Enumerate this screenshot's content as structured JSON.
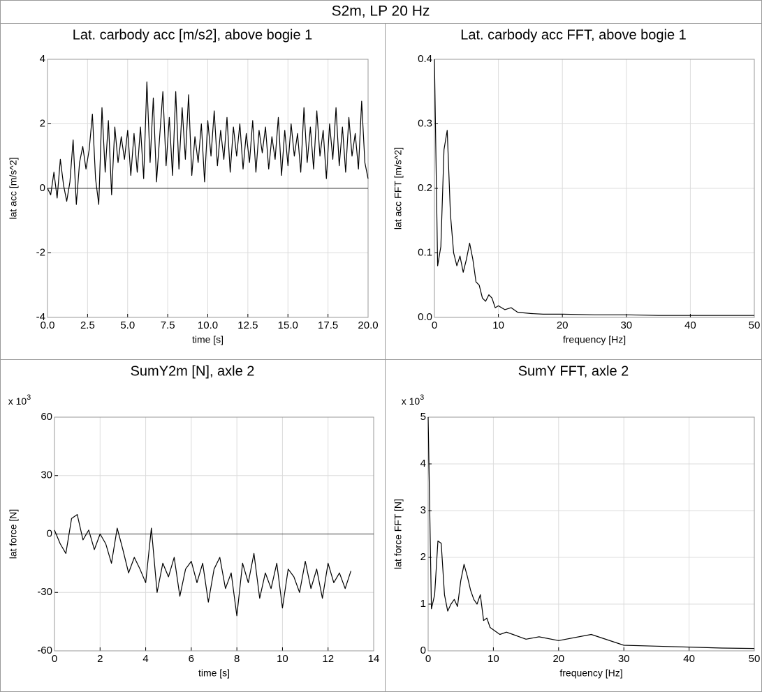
{
  "title": "S2m, LP 20 Hz",
  "chart_data": [
    {
      "type": "line",
      "title": "Lat. carbody acc [m/s2], above bogie 1",
      "xlabel": "time [s]",
      "ylabel": "lat acc [m/s^2]",
      "color": "#000000",
      "grid": true,
      "zero_line": true,
      "x": [
        0,
        0.2,
        0.4,
        0.6,
        0.8,
        1,
        1.2,
        1.4,
        1.6,
        1.8,
        2,
        2.2,
        2.4,
        2.6,
        2.8,
        3,
        3.2,
        3.4,
        3.6,
        3.8,
        4,
        4.2,
        4.4,
        4.6,
        4.8,
        5,
        5.2,
        5.4,
        5.6,
        5.8,
        6,
        6.2,
        6.4,
        6.6,
        6.8,
        7,
        7.2,
        7.4,
        7.6,
        7.8,
        8,
        8.2,
        8.4,
        8.6,
        8.8,
        9,
        9.2,
        9.4,
        9.6,
        9.8,
        10,
        10.2,
        10.4,
        10.6,
        10.8,
        11,
        11.2,
        11.4,
        11.6,
        11.8,
        12,
        12.2,
        12.4,
        12.6,
        12.8,
        13,
        13.2,
        13.4,
        13.6,
        13.8,
        14,
        14.2,
        14.4,
        14.6,
        14.8,
        15,
        15.2,
        15.4,
        15.6,
        15.8,
        16,
        16.2,
        16.4,
        16.6,
        16.8,
        17,
        17.2,
        17.4,
        17.6,
        17.8,
        18,
        18.2,
        18.4,
        18.6,
        18.8,
        19,
        19.2,
        19.4,
        19.6,
        19.8,
        20
      ],
      "values": [
        0.0,
        -0.2,
        0.5,
        -0.3,
        0.9,
        0.1,
        -0.4,
        0.2,
        1.5,
        -0.5,
        0.8,
        1.3,
        0.6,
        1.2,
        2.3,
        0.3,
        -0.5,
        2.5,
        0.5,
        2.1,
        -0.2,
        1.9,
        0.8,
        1.6,
        0.9,
        1.8,
        0.4,
        1.7,
        0.5,
        1.9,
        0.3,
        3.3,
        0.8,
        2.8,
        0.2,
        1.6,
        3.0,
        0.7,
        2.2,
        0.4,
        3.0,
        0.6,
        2.5,
        0.9,
        2.9,
        0.4,
        1.6,
        0.8,
        2.0,
        0.2,
        2.1,
        1.0,
        2.4,
        0.7,
        1.8,
        0.9,
        2.2,
        0.5,
        1.9,
        1.0,
        2.0,
        0.6,
        1.7,
        0.8,
        2.1,
        0.5,
        1.8,
        1.1,
        1.9,
        0.6,
        1.6,
        0.9,
        2.2,
        0.4,
        1.8,
        0.7,
        2.0,
        1.0,
        1.7,
        0.5,
        2.5,
        0.8,
        1.9,
        0.6,
        2.4,
        1.0,
        1.8,
        0.3,
        2.0,
        0.9,
        2.5,
        0.7,
        1.9,
        0.5,
        2.2,
        1.0,
        1.7,
        0.6,
        2.7,
        0.8,
        0.3
      ],
      "xlim": [
        0,
        20
      ],
      "ylim": [
        -4,
        4
      ],
      "xticks": [
        {
          "value": 0,
          "label": "0.0"
        },
        {
          "value": 2.5,
          "label": "2.5"
        },
        {
          "value": 5,
          "label": "5.0"
        },
        {
          "value": 7.5,
          "label": "7.5"
        },
        {
          "value": 10,
          "label": "10.0"
        },
        {
          "value": 12.5,
          "label": "12.5"
        },
        {
          "value": 15,
          "label": "15.0"
        },
        {
          "value": 17.5,
          "label": "17.5"
        },
        {
          "value": 20,
          "label": "20.0"
        }
      ],
      "yticks": [
        -4,
        -2,
        0,
        2,
        4
      ]
    },
    {
      "type": "line",
      "title": "Lat. carbody acc FFT, above bogie 1",
      "xlabel": "frequency [Hz]",
      "ylabel": "lat acc FFT [m/s^2]",
      "color": "#000000",
      "grid": true,
      "zero_line": false,
      "x": [
        0,
        0.5,
        1,
        1.5,
        2,
        2.5,
        3,
        3.5,
        4,
        4.5,
        5,
        5.5,
        6,
        6.5,
        7,
        7.5,
        8,
        8.5,
        9,
        9.5,
        10,
        11,
        12,
        13,
        14,
        15,
        17,
        20,
        25,
        30,
        35,
        40,
        45,
        50
      ],
      "values": [
        0.4,
        0.08,
        0.11,
        0.26,
        0.29,
        0.16,
        0.1,
        0.08,
        0.095,
        0.07,
        0.09,
        0.115,
        0.09,
        0.055,
        0.05,
        0.03,
        0.025,
        0.035,
        0.03,
        0.015,
        0.018,
        0.012,
        0.015,
        0.008,
        0.007,
        0.006,
        0.005,
        0.005,
        0.004,
        0.004,
        0.003,
        0.003,
        0.003,
        0.003
      ],
      "xlim": [
        0,
        50
      ],
      "ylim": [
        0,
        0.4
      ],
      "xticks": [
        0,
        10,
        20,
        30,
        40,
        50
      ],
      "yticks": [
        {
          "value": 0,
          "label": "0.0"
        },
        0.1,
        0.2,
        0.3,
        0.4
      ]
    },
    {
      "type": "line",
      "title": "SumY2m [N], axle 2",
      "xlabel": "time [s]",
      "ylabel": "lat force [N]",
      "color": "#000000",
      "grid": true,
      "zero_line": true,
      "y_multiplier": {
        "text": "x 10",
        "exponent": "3"
      },
      "x": [
        0,
        0.25,
        0.5,
        0.75,
        1,
        1.25,
        1.5,
        1.75,
        2,
        2.25,
        2.5,
        2.75,
        3,
        3.25,
        3.5,
        3.75,
        4,
        4.25,
        4.5,
        4.75,
        5,
        5.25,
        5.5,
        5.75,
        6,
        6.25,
        6.5,
        6.75,
        7,
        7.25,
        7.5,
        7.75,
        8,
        8.25,
        8.5,
        8.75,
        9,
        9.25,
        9.5,
        9.75,
        10,
        10.25,
        10.5,
        10.75,
        11,
        11.25,
        11.5,
        11.75,
        12,
        12.25,
        12.5,
        12.75,
        13
      ],
      "values": [
        2,
        -5,
        -10,
        8,
        10,
        -3,
        2,
        -8,
        0,
        -5,
        -15,
        3,
        -8,
        -20,
        -12,
        -18,
        -25,
        3,
        -30,
        -15,
        -22,
        -12,
        -32,
        -18,
        -14,
        -25,
        -15,
        -35,
        -18,
        -12,
        -28,
        -20,
        -42,
        -15,
        -25,
        -10,
        -33,
        -20,
        -28,
        -15,
        -38,
        -18,
        -22,
        -30,
        -14,
        -28,
        -18,
        -33,
        -15,
        -25,
        -20,
        -28,
        -19
      ],
      "xlim": [
        0,
        14
      ],
      "ylim": [
        -60,
        60
      ],
      "xticks": [
        0,
        2,
        4,
        6,
        8,
        10,
        12,
        14
      ],
      "yticks": [
        -60,
        -30,
        0,
        30,
        60
      ]
    },
    {
      "type": "line",
      "title": "SumY FFT, axle 2",
      "xlabel": "frequency [Hz]",
      "ylabel": "lat force FFT [N]",
      "color": "#000000",
      "grid": true,
      "zero_line": false,
      "y_multiplier": {
        "text": "x 10",
        "exponent": "3"
      },
      "x": [
        0,
        0.5,
        1,
        1.5,
        2,
        2.5,
        3,
        3.5,
        4,
        4.5,
        5,
        5.5,
        6,
        6.5,
        7,
        7.5,
        8,
        8.5,
        9,
        9.5,
        10,
        11,
        12,
        13,
        14,
        15,
        17,
        20,
        25,
        30,
        35,
        40,
        45,
        50
      ],
      "values": [
        5.0,
        0.9,
        1.2,
        2.35,
        2.3,
        1.2,
        0.85,
        1.0,
        1.1,
        0.95,
        1.5,
        1.85,
        1.6,
        1.3,
        1.1,
        1.0,
        1.2,
        0.65,
        0.7,
        0.5,
        0.45,
        0.35,
        0.4,
        0.35,
        0.3,
        0.25,
        0.3,
        0.22,
        0.35,
        0.12,
        0.1,
        0.08,
        0.06,
        0.05
      ],
      "xlim": [
        0,
        50
      ],
      "ylim": [
        0,
        5
      ],
      "xticks": [
        0,
        10,
        20,
        30,
        40,
        50
      ],
      "yticks": [
        0,
        1,
        2,
        3,
        4,
        5
      ]
    }
  ]
}
